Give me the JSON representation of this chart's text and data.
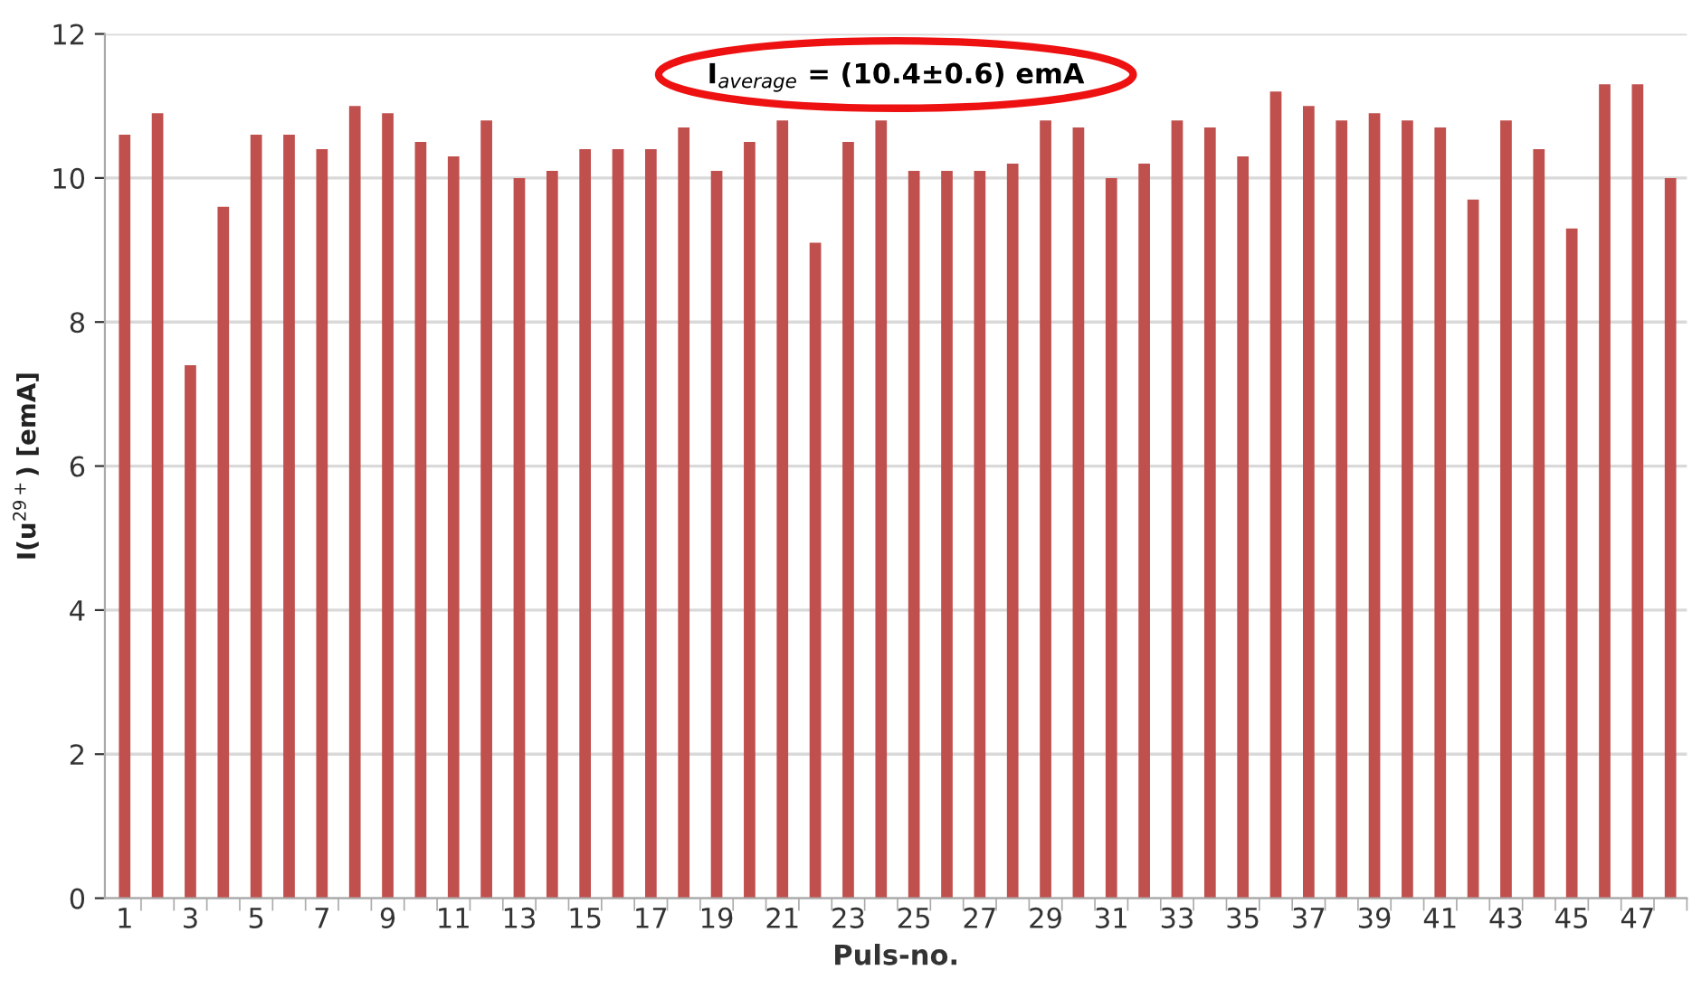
{
  "chart_data": {
    "type": "bar",
    "xlabel": "Puls-no.",
    "ylabel": "I(u$^{29+}$) [emA]",
    "categories": [
      "1",
      null,
      "3",
      null,
      "5",
      null,
      "7",
      null,
      "9",
      null,
      "11",
      null,
      "13",
      null,
      "15",
      null,
      "17",
      null,
      "19",
      null,
      "21",
      null,
      "23",
      null,
      "25",
      null,
      "27",
      null,
      "29",
      null,
      "31",
      null,
      "33",
      null,
      "35",
      null,
      "37",
      null,
      "39",
      null,
      "41",
      null,
      "43",
      null,
      "45",
      null,
      "47",
      null
    ],
    "values": [
      10.6,
      10.9,
      7.4,
      9.6,
      10.6,
      10.6,
      10.4,
      11.0,
      10.9,
      10.5,
      10.3,
      10.8,
      10.0,
      10.1,
      10.4,
      10.4,
      10.4,
      10.7,
      10.1,
      10.5,
      10.8,
      9.1,
      10.5,
      10.8,
      10.1,
      10.1,
      10.1,
      10.2,
      10.8,
      10.7,
      10.0,
      10.2,
      10.8,
      10.7,
      10.3,
      11.2,
      11.0,
      10.8,
      10.9,
      10.8,
      10.7,
      9.7,
      10.8,
      10.4,
      9.3,
      11.3,
      11.3,
      10.0
    ],
    "color": "#c0504d",
    "ylim": [
      0,
      12
    ],
    "yticks": [
      0,
      2,
      4,
      6,
      8,
      10,
      12
    ],
    "grid": "y",
    "annotations": [
      "I$_{average}$ = (10.4±0.6) emA"
    ]
  }
}
